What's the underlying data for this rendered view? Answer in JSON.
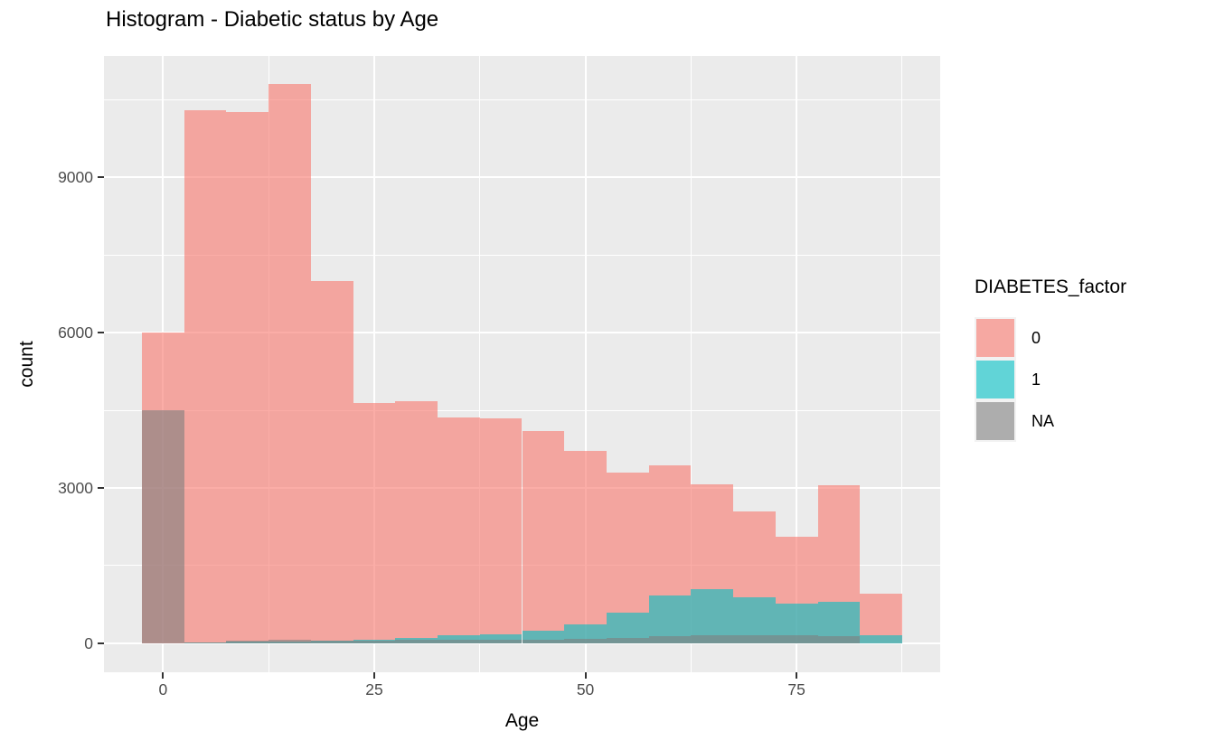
{
  "page": {
    "title": "Histogram - Diabetic status by Age"
  },
  "chart_data": {
    "type": "bar",
    "subtype": "overlaid-histogram",
    "title": "Histogram - Diabetic status by Age",
    "xlabel": "Age",
    "ylabel": "count",
    "legend_title": "DIABETES_factor",
    "legend_position": "right",
    "grid": true,
    "panel_bg": "#EBEBEB",
    "grid_color": "#FFFFFF",
    "alpha": 0.6,
    "binwidth": 5,
    "bin_centers": [
      0,
      5,
      10,
      15,
      20,
      25,
      30,
      35,
      40,
      45,
      50,
      55,
      60,
      65,
      70,
      75,
      80,
      85
    ],
    "series": [
      {
        "name": "0",
        "color": "#F8766D",
        "values": [
          6000,
          10300,
          10250,
          10800,
          7000,
          4640,
          4680,
          4360,
          4340,
          4100,
          3720,
          3290,
          3430,
          3070,
          2540,
          2050,
          3060,
          950
        ]
      },
      {
        "name": "1",
        "color": "#00BFC4",
        "values": [
          0,
          10,
          30,
          40,
          45,
          60,
          100,
          150,
          170,
          250,
          370,
          600,
          920,
          1040,
          890,
          760,
          800,
          160
        ]
      },
      {
        "name": "NA",
        "color": "#7F7F7F",
        "values": [
          4500,
          20,
          50,
          60,
          55,
          55,
          60,
          70,
          70,
          75,
          90,
          110,
          140,
          150,
          160,
          150,
          130,
          0
        ]
      }
    ],
    "x_ticks": [
      0,
      25,
      50,
      75
    ],
    "x_tick_labels": [
      "0",
      "25",
      "50",
      "75"
    ],
    "y_ticks": [
      0,
      3000,
      6000,
      9000
    ],
    "y_tick_labels": [
      "0",
      "3000",
      "6000",
      "9000"
    ],
    "x_minor": [
      12.5,
      37.5,
      62.5,
      87.5
    ],
    "y_minor": [
      1500,
      4500,
      7500,
      10500
    ],
    "x_domain": [
      -7,
      92
    ],
    "y_domain": [
      -560,
      11340
    ],
    "ylim": [
      0,
      10800
    ]
  },
  "legend": {
    "title": "DIABETES_factor",
    "items": [
      {
        "label": "0",
        "color": "#F8766D"
      },
      {
        "label": "1",
        "color": "#00BFC4"
      },
      {
        "label": "NA",
        "color": "#7F7F7F"
      }
    ]
  },
  "colors": {
    "page_bg": "#FFFFFF",
    "panel_bg": "#EBEBEB",
    "gridline": "#FFFFFF",
    "tick_label": "#4D4D4D",
    "tick_mark": "#333333",
    "axis_title": "#000000"
  }
}
